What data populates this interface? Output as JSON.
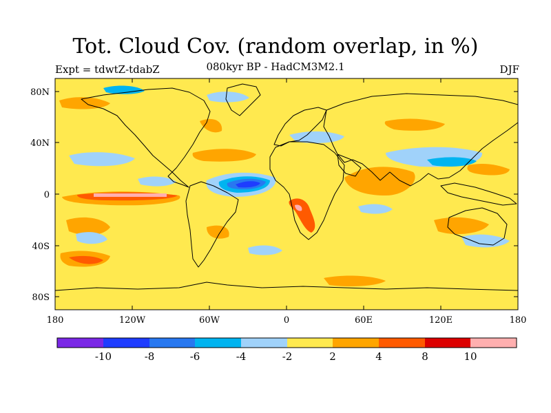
{
  "header": {
    "title": "Tot. Cloud Cov. (random overlap, in %)",
    "subtitle": "080kyr BP - HadCM3M2.1",
    "left_label": "Expt = tdwtZ-tdabZ",
    "right_label": "DJF"
  },
  "map": {
    "projection": "cylindrical-equidistant",
    "background_color": "#ffe94f",
    "lon_range": [
      -180,
      180
    ],
    "lat_range": [
      -90,
      90
    ],
    "x_ticks": [
      "180",
      "120W",
      "60W",
      "0",
      "60E",
      "120E",
      "180"
    ],
    "y_ticks": [
      "80N",
      "40N",
      "0",
      "40S",
      "80S"
    ]
  },
  "colorbar": {
    "colors": [
      "#7a28e6",
      "#1e3cff",
      "#2878f0",
      "#00b4f0",
      "#a0d2fa",
      "#ffe94f",
      "#ffa500",
      "#ff5a00",
      "#dc0000",
      "#ffafaf"
    ],
    "labels": [
      "-10",
      "-8",
      "-6",
      "-4",
      "-2",
      "2",
      "4",
      "8",
      "10"
    ]
  }
}
